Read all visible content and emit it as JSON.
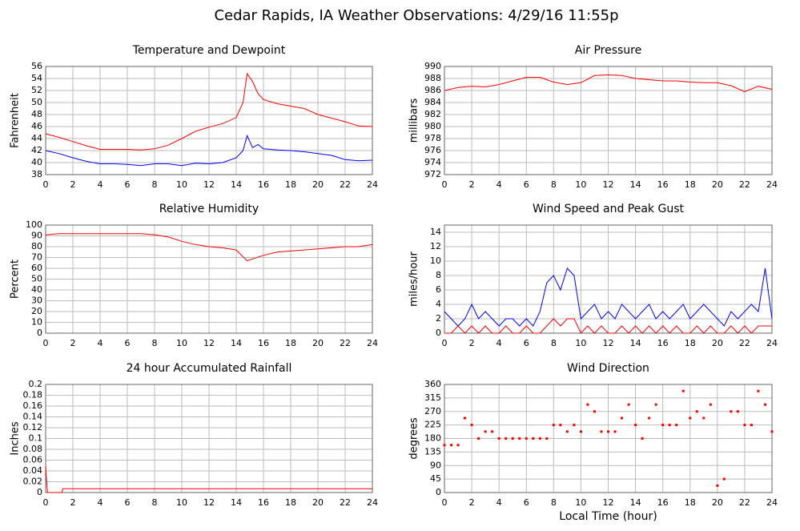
{
  "title": "Cedar Rapids, IA Weather Observations: 4/29/16 11:55p",
  "chart_data": [
    {
      "type": "line",
      "title": "Temperature and Dewpoint",
      "ylabel": "Fahrenheit",
      "x": [
        0,
        1,
        2,
        3,
        4,
        5,
        6,
        7,
        8,
        9,
        10,
        11,
        12,
        13,
        14,
        14.5,
        14.8,
        15.2,
        15.6,
        16,
        17,
        18,
        19,
        20,
        21,
        22,
        23,
        24
      ],
      "series": [
        {
          "name": "Temperature",
          "color": "#ff0000",
          "values": [
            44.8,
            44.2,
            43.5,
            42.8,
            42.2,
            42.2,
            42.2,
            42.1,
            42.3,
            42.9,
            44,
            45.2,
            45.9,
            46.5,
            47.5,
            50,
            54.8,
            53.5,
            51.5,
            50.5,
            49.8,
            49.4,
            49,
            48,
            47.4,
            46.8,
            46.1,
            46
          ]
        },
        {
          "name": "Dewpoint",
          "color": "#0000ff",
          "values": [
            42,
            41.5,
            40.8,
            40.2,
            39.8,
            39.8,
            39.7,
            39.5,
            39.8,
            39.8,
            39.5,
            39.9,
            39.8,
            40,
            40.8,
            42,
            44.5,
            42.5,
            43,
            42.3,
            42.1,
            42,
            41.8,
            41.5,
            41.2,
            40.5,
            40.3,
            40.4
          ]
        }
      ],
      "xlim": [
        0,
        24
      ],
      "xticks": [
        0,
        2,
        4,
        6,
        8,
        10,
        12,
        14,
        16,
        18,
        20,
        22,
        24
      ],
      "ylim": [
        38,
        56
      ],
      "yticks": [
        38,
        40,
        42,
        44,
        46,
        48,
        50,
        52,
        54,
        56
      ],
      "grid": true
    },
    {
      "type": "line",
      "title": "Air Pressure",
      "ylabel": "millibars",
      "x": [
        0,
        1,
        2,
        3,
        4,
        5,
        6,
        7,
        8,
        9,
        10,
        11,
        12,
        13,
        14,
        15,
        16,
        17,
        18,
        19,
        20,
        21,
        22,
        23,
        24
      ],
      "series": [
        {
          "name": "Pressure",
          "color": "#ff0000",
          "values": [
            986,
            986.5,
            986.7,
            986.6,
            987,
            987.6,
            988.2,
            988.2,
            987.4,
            987,
            987.3,
            988.5,
            988.6,
            988.5,
            988,
            987.8,
            987.6,
            987.6,
            987.4,
            987.3,
            987.3,
            986.8,
            985.8,
            986.7,
            986.2
          ]
        }
      ],
      "xlim": [
        0,
        24
      ],
      "xticks": [
        0,
        2,
        4,
        6,
        8,
        10,
        12,
        14,
        16,
        18,
        20,
        22,
        24
      ],
      "ylim": [
        972,
        990
      ],
      "yticks": [
        972,
        974,
        976,
        978,
        980,
        982,
        984,
        986,
        988,
        990
      ],
      "grid": true
    },
    {
      "type": "line",
      "title": "Relative Humidity",
      "ylabel": "Percent",
      "x": [
        0,
        1,
        2,
        3,
        4,
        5,
        6,
        7,
        8,
        9,
        10,
        11,
        12,
        13,
        14,
        14.8,
        16,
        17,
        18,
        19,
        20,
        21,
        22,
        23,
        24
      ],
      "series": [
        {
          "name": "Humidity",
          "color": "#ff0000",
          "values": [
            91,
            92,
            92,
            92,
            92,
            92,
            92,
            92,
            91,
            89,
            85,
            82,
            80,
            79,
            77,
            67,
            72,
            75,
            76,
            77,
            78,
            79,
            80,
            80,
            82
          ]
        }
      ],
      "xlim": [
        0,
        24
      ],
      "xticks": [
        0,
        2,
        4,
        6,
        8,
        10,
        12,
        14,
        16,
        18,
        20,
        22,
        24
      ],
      "ylim": [
        0,
        100
      ],
      "yticks": [
        0,
        10,
        20,
        30,
        40,
        50,
        60,
        70,
        80,
        90,
        100
      ],
      "grid": true
    },
    {
      "type": "line",
      "title": "Wind Speed and Peak Gust",
      "ylabel": "miles/hour",
      "x": [
        0,
        0.5,
        1,
        1.5,
        2,
        2.5,
        3,
        3.5,
        4,
        4.5,
        5,
        5.5,
        6,
        6.5,
        7,
        7.5,
        8,
        8.5,
        9,
        9.5,
        10,
        10.5,
        11,
        11.5,
        12,
        12.5,
        13,
        13.5,
        14,
        14.5,
        15,
        15.5,
        16,
        16.5,
        17,
        17.5,
        18,
        18.5,
        19,
        19.5,
        20,
        20.5,
        21,
        21.5,
        22,
        22.5,
        23,
        23.5,
        24
      ],
      "series": [
        {
          "name": "Wind Speed",
          "color": "#0000ff",
          "values": [
            3,
            2,
            1,
            2,
            4,
            2,
            3,
            2,
            1,
            2,
            2,
            1,
            2,
            1,
            3,
            7,
            8,
            6,
            9,
            8,
            2,
            3,
            4,
            2,
            3,
            2,
            4,
            3,
            2,
            3,
            4,
            2,
            3,
            2,
            3,
            4,
            2,
            3,
            4,
            3,
            2,
            1,
            3,
            2,
            3,
            4,
            3,
            9,
            2
          ]
        },
        {
          "name": "Peak Gust",
          "color": "#ff0000",
          "values": [
            0,
            0,
            1,
            0,
            1,
            0,
            1,
            0,
            0,
            1,
            0,
            0,
            1,
            0,
            0,
            1,
            2,
            1,
            2,
            2,
            0,
            1,
            0,
            1,
            0,
            0,
            1,
            0,
            1,
            0,
            1,
            0,
            1,
            0,
            1,
            0,
            0,
            1,
            0,
            1,
            0,
            0,
            1,
            0,
            1,
            0,
            1,
            1,
            1
          ]
        }
      ],
      "xlim": [
        0,
        24
      ],
      "xticks": [
        0,
        2,
        4,
        6,
        8,
        10,
        12,
        14,
        16,
        18,
        20,
        22,
        24
      ],
      "ylim": [
        0,
        15
      ],
      "yticks": [
        0,
        2,
        4,
        6,
        8,
        10,
        12,
        14
      ],
      "grid": true
    },
    {
      "type": "line",
      "title": "24 hour Accumulated Rainfall",
      "ylabel": "Inches",
      "x": [
        0,
        0.1,
        0.15,
        1.2,
        1.25,
        24
      ],
      "series": [
        {
          "name": "Rainfall",
          "color": "#ff0000",
          "values": [
            0.05,
            0.01,
            0,
            0,
            0.007,
            0.007
          ]
        }
      ],
      "xlim": [
        0,
        24
      ],
      "xticks": [
        0,
        2,
        4,
        6,
        8,
        10,
        12,
        14,
        16,
        18,
        20,
        22,
        24
      ],
      "ylim": [
        0,
        0.2
      ],
      "yticks": [
        0,
        0.02,
        0.04,
        0.06,
        0.08,
        0.1,
        0.12,
        0.14,
        0.16,
        0.18,
        0.2
      ],
      "grid": true
    },
    {
      "type": "scatter",
      "title": "Wind Direction",
      "ylabel": "degrees",
      "xlabel": "Local Time (hour)",
      "x": [
        0,
        0.5,
        1,
        1.5,
        2,
        2.5,
        3,
        3.5,
        4,
        4.5,
        5,
        5.5,
        6,
        6.5,
        7,
        7.5,
        8,
        8.5,
        9,
        9.5,
        10,
        10.5,
        11,
        11.5,
        12,
        12.5,
        13,
        13.5,
        14,
        14.5,
        15,
        15.5,
        16,
        16.5,
        17,
        17.5,
        18,
        18.5,
        19,
        19.5,
        20,
        20.5,
        21,
        21.5,
        22,
        22.5,
        23,
        23.5,
        24
      ],
      "series": [
        {
          "name": "Direction",
          "color": "#ff0000",
          "values": [
            158,
            158,
            158,
            248,
            225,
            180,
            203,
            203,
            180,
            180,
            180,
            180,
            180,
            180,
            180,
            180,
            225,
            225,
            203,
            225,
            203,
            293,
            270,
            203,
            203,
            203,
            248,
            293,
            225,
            180,
            248,
            293,
            225,
            225,
            225,
            338,
            248,
            270,
            248,
            293,
            23,
            45,
            270,
            270,
            225,
            225,
            338,
            293,
            203
          ]
        }
      ],
      "xlim": [
        0,
        24
      ],
      "xticks": [
        0,
        2,
        4,
        6,
        8,
        10,
        12,
        14,
        16,
        18,
        20,
        22,
        24
      ],
      "ylim": [
        0,
        360
      ],
      "yticks": [
        0,
        45,
        90,
        135,
        180,
        225,
        270,
        315,
        360
      ],
      "grid": true
    }
  ]
}
